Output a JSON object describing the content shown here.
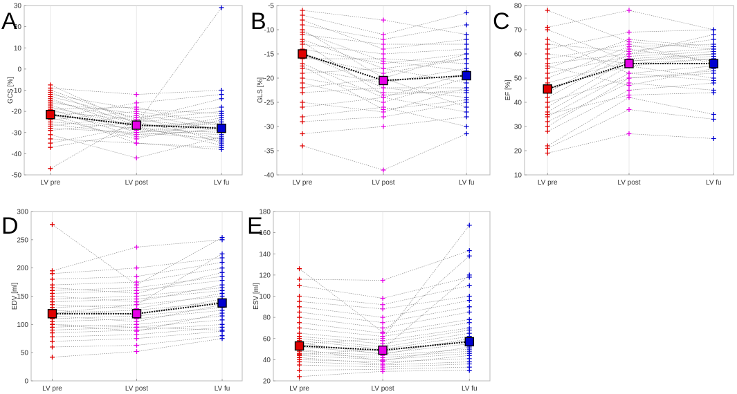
{
  "figure": {
    "colors": {
      "pre": "#e00000",
      "post": "#e600e6",
      "fu": "#0000d0",
      "mean_line": "#000000",
      "subject_line": "#8c8c8c"
    }
  },
  "chart_data": [
    {
      "type": "line",
      "panel": "A",
      "ylabel": "GCS [%]",
      "categories": [
        "LV pre",
        "LV post",
        "LV fu"
      ],
      "ylim": [
        -50,
        30
      ],
      "yticks": [
        -50,
        -40,
        -30,
        -20,
        -10,
        0,
        10,
        20,
        30
      ],
      "mean": [
        -21.5,
        -26.5,
        -28
      ],
      "subjects": [
        [
          -47,
          -24,
          -28
        ],
        [
          -37,
          -30,
          -33
        ],
        [
          -35,
          -27,
          -36
        ],
        [
          -33,
          -35,
          -38
        ],
        [
          -31,
          -42,
          -32
        ],
        [
          -29,
          -25,
          -22
        ],
        [
          -28,
          -30,
          -27
        ],
        [
          -27,
          -22,
          -35
        ],
        [
          -26,
          -31,
          -29
        ],
        [
          -25,
          -28,
          -30
        ],
        [
          -24,
          -20,
          -26
        ],
        [
          -23,
          -33,
          -24
        ],
        [
          -22,
          -26,
          -28
        ],
        [
          -21,
          -29,
          -31
        ],
        [
          -20,
          -24,
          -20
        ],
        [
          -19,
          -18,
          -27
        ],
        [
          -18,
          -27,
          -25
        ],
        [
          -17,
          -30,
          -23
        ],
        [
          -16,
          -21,
          -29
        ],
        [
          -15,
          -25,
          -33
        ],
        [
          -14,
          -28,
          -34
        ],
        [
          -13,
          -23,
          -18
        ],
        [
          -12,
          -19,
          -21
        ],
        [
          -11,
          -27,
          -26
        ],
        [
          -10,
          -24,
          -14
        ],
        [
          -9,
          -12,
          -10
        ],
        [
          -7.5,
          -26,
          29
        ],
        [
          -21,
          -35,
          -37
        ],
        [
          -19,
          -32,
          -28
        ],
        [
          -23,
          -16,
          -12
        ]
      ]
    },
    {
      "type": "line",
      "panel": "B",
      "ylabel": "GLS [%]",
      "categories": [
        "LV pre",
        "LV post",
        "LV fu"
      ],
      "ylim": [
        -40,
        -5
      ],
      "yticks": [
        -40,
        -35,
        -30,
        -25,
        -20,
        -15,
        -10,
        -5
      ],
      "mean": [
        -15,
        -20.5,
        -19.5
      ],
      "subjects": [
        [
          -34,
          -39,
          -31.5
        ],
        [
          -31.5,
          -30,
          -28
        ],
        [
          -29,
          -28,
          -25
        ],
        [
          -28,
          -26,
          -30
        ],
        [
          -26,
          -24,
          -27
        ],
        [
          -25,
          -27,
          -22
        ],
        [
          -23,
          -22,
          -24
        ],
        [
          -22,
          -20,
          -26
        ],
        [
          -21,
          -25,
          -20
        ],
        [
          -20,
          -23,
          -23
        ],
        [
          -19,
          -18,
          -21
        ],
        [
          -18,
          -21,
          -18
        ],
        [
          -17,
          -24,
          -19
        ],
        [
          -16,
          -16,
          -17
        ],
        [
          -15.5,
          -19,
          -16
        ],
        [
          -15,
          -22,
          -22
        ],
        [
          -14,
          -17,
          -15
        ],
        [
          -13,
          -15,
          -14
        ],
        [
          -12,
          -18,
          -16
        ],
        [
          -11,
          -13,
          -13
        ],
        [
          -10,
          -20,
          -15
        ],
        [
          -9,
          -12,
          -9
        ],
        [
          -8,
          -14,
          -12
        ],
        [
          -7,
          -11,
          -6.5
        ],
        [
          -6,
          -8,
          -11
        ],
        [
          -12.5,
          -23.5,
          -22.5
        ],
        [
          -17.5,
          -26.5,
          -24.5
        ],
        [
          -10.5,
          -16.5,
          -18.5
        ]
      ]
    },
    {
      "type": "line",
      "panel": "C",
      "ylabel": "EF [%]",
      "categories": [
        "LV pre",
        "LV post",
        "LV fu"
      ],
      "ylim": [
        10,
        80
      ],
      "yticks": [
        10,
        20,
        30,
        40,
        50,
        60,
        70,
        80
      ],
      "mean": [
        45.5,
        56,
        56
      ],
      "subjects": [
        [
          19,
          27,
          25
        ],
        [
          21,
          37,
          33
        ],
        [
          22,
          42,
          35
        ],
        [
          28,
          45,
          48
        ],
        [
          30,
          50,
          52
        ],
        [
          32,
          48,
          45
        ],
        [
          34,
          52,
          55
        ],
        [
          36,
          55,
          58
        ],
        [
          38,
          58,
          60
        ],
        [
          40,
          50,
          53
        ],
        [
          42,
          60,
          62
        ],
        [
          44,
          62,
          57
        ],
        [
          46,
          55,
          50
        ],
        [
          48,
          57,
          59
        ],
        [
          50,
          63,
          64
        ],
        [
          52,
          59,
          61
        ],
        [
          54,
          66,
          63
        ],
        [
          56,
          60,
          68
        ],
        [
          58,
          64,
          56
        ],
        [
          60,
          56,
          58
        ],
        [
          62,
          69,
          70
        ],
        [
          64,
          61,
          66
        ],
        [
          66,
          52,
          49
        ],
        [
          70,
          57,
          60
        ],
        [
          71,
          78,
          70
        ],
        [
          78,
          65,
          62
        ],
        [
          35,
          43,
          44
        ],
        [
          55,
          47,
          54
        ]
      ]
    },
    {
      "type": "line",
      "panel": "D",
      "ylabel": "EDV [ml]",
      "categories": [
        "LV pre",
        "LV post",
        "LV fu"
      ],
      "ylim": [
        0,
        300
      ],
      "yticks": [
        0,
        50,
        100,
        150,
        200,
        250,
        300
      ],
      "mean": [
        119,
        119,
        138
      ],
      "subjects": [
        [
          42,
          52,
          75
        ],
        [
          60,
          63,
          80
        ],
        [
          70,
          75,
          88
        ],
        [
          78,
          82,
          95
        ],
        [
          85,
          90,
          100
        ],
        [
          90,
          95,
          108
        ],
        [
          95,
          100,
          115
        ],
        [
          100,
          88,
          120
        ],
        [
          105,
          110,
          125
        ],
        [
          110,
          115,
          130
        ],
        [
          115,
          105,
          135
        ],
        [
          120,
          125,
          140
        ],
        [
          125,
          118,
          145
        ],
        [
          130,
          135,
          150
        ],
        [
          135,
          128,
          155
        ],
        [
          140,
          145,
          160
        ],
        [
          145,
          150,
          165
        ],
        [
          150,
          140,
          170
        ],
        [
          155,
          160,
          178
        ],
        [
          160,
          165,
          185
        ],
        [
          165,
          155,
          192
        ],
        [
          170,
          175,
          200
        ],
        [
          180,
          185,
          210
        ],
        [
          190,
          200,
          218
        ],
        [
          195,
          237,
          250
        ],
        [
          277,
          170,
          254
        ],
        [
          120,
          135,
          225
        ],
        [
          100,
          95,
          90
        ]
      ]
    },
    {
      "type": "line",
      "panel": "E",
      "ylabel": "ESV [ml]",
      "categories": [
        "LV pre",
        "LV post",
        "LV fu"
      ],
      "ylim": [
        20,
        180
      ],
      "yticks": [
        20,
        40,
        60,
        80,
        100,
        120,
        140,
        160,
        180
      ],
      "mean": [
        53,
        49,
        57
      ],
      "subjects": [
        [
          24,
          29,
          30
        ],
        [
          30,
          31,
          33
        ],
        [
          35,
          33,
          36
        ],
        [
          38,
          35,
          38
        ],
        [
          40,
          38,
          41
        ],
        [
          42,
          36,
          44
        ],
        [
          44,
          40,
          46
        ],
        [
          46,
          42,
          48
        ],
        [
          48,
          44,
          50
        ],
        [
          50,
          39,
          52
        ],
        [
          52,
          46,
          55
        ],
        [
          54,
          48,
          58
        ],
        [
          56,
          45,
          60
        ],
        [
          58,
          50,
          62
        ],
        [
          60,
          52,
          65
        ],
        [
          62,
          55,
          68
        ],
        [
          65,
          58,
          70
        ],
        [
          70,
          62,
          75
        ],
        [
          75,
          65,
          78
        ],
        [
          80,
          70,
          85
        ],
        [
          85,
          75,
          90
        ],
        [
          90,
          80,
          96
        ],
        [
          95,
          88,
          100
        ],
        [
          100,
          92,
          110
        ],
        [
          110,
          98,
          118
        ],
        [
          116,
          115,
          143
        ],
        [
          126,
          66,
          138
        ],
        [
          55,
          60,
          167
        ],
        [
          45,
          50,
          120
        ]
      ]
    }
  ]
}
